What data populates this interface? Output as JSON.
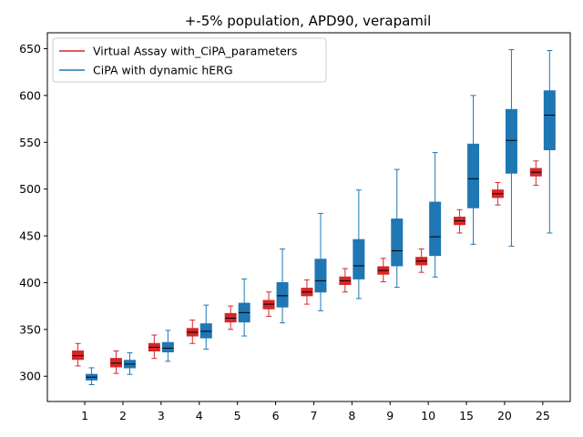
{
  "chart_data": {
    "type": "box",
    "title": "+-5% population, APD90, verapamil",
    "xlabel": "",
    "ylabel": "",
    "categories": [
      "1",
      "2",
      "3",
      "4",
      "5",
      "6",
      "7",
      "8",
      "9",
      "10",
      "15",
      "20",
      "25"
    ],
    "ylim": [
      273,
      667
    ],
    "yticks": [
      300,
      350,
      400,
      450,
      500,
      550,
      600,
      650
    ],
    "legend_position": "top-left",
    "grid": false,
    "series": [
      {
        "name": "Virtual Assay with_CiPA_parameters",
        "color": "#d62728",
        "boxes": [
          {
            "whislo": 311,
            "q1": 318,
            "med": 322,
            "q3": 327,
            "whishi": 335
          },
          {
            "whislo": 303,
            "q1": 310,
            "med": 314,
            "q3": 319,
            "whishi": 327
          },
          {
            "whislo": 319,
            "q1": 327,
            "med": 331,
            "q3": 335,
            "whishi": 344
          },
          {
            "whislo": 335,
            "q1": 343,
            "med": 347,
            "q3": 351,
            "whishi": 360
          },
          {
            "whislo": 350,
            "q1": 358,
            "med": 362,
            "q3": 367,
            "whishi": 375
          },
          {
            "whislo": 364,
            "q1": 372,
            "med": 377,
            "q3": 381,
            "whishi": 390
          },
          {
            "whislo": 377,
            "q1": 386,
            "med": 390,
            "q3": 394,
            "whishi": 403
          },
          {
            "whislo": 390,
            "q1": 398,
            "med": 402,
            "q3": 406,
            "whishi": 415
          },
          {
            "whislo": 401,
            "q1": 409,
            "med": 413,
            "q3": 417,
            "whishi": 426
          },
          {
            "whislo": 411,
            "q1": 419,
            "med": 423,
            "q3": 427,
            "whishi": 436
          },
          {
            "whislo": 453,
            "q1": 462,
            "med": 466,
            "q3": 470,
            "whishi": 478
          },
          {
            "whislo": 483,
            "q1": 491,
            "med": 495,
            "q3": 499,
            "whishi": 507
          },
          {
            "whislo": 504,
            "q1": 514,
            "med": 518,
            "q3": 522,
            "whishi": 530
          }
        ]
      },
      {
        "name": "CiPA with dynamic hERG",
        "color": "#1f77b4",
        "boxes": [
          {
            "whislo": 291,
            "q1": 296,
            "med": 299,
            "q3": 302,
            "whishi": 309
          },
          {
            "whislo": 302,
            "q1": 309,
            "med": 313,
            "q3": 317,
            "whishi": 325
          },
          {
            "whislo": 316,
            "q1": 326,
            "med": 330,
            "q3": 336,
            "whishi": 349
          },
          {
            "whislo": 329,
            "q1": 341,
            "med": 348,
            "q3": 356,
            "whishi": 376
          },
          {
            "whislo": 343,
            "q1": 358,
            "med": 368,
            "q3": 378,
            "whishi": 404
          },
          {
            "whislo": 357,
            "q1": 374,
            "med": 386,
            "q3": 400,
            "whishi": 436
          },
          {
            "whislo": 370,
            "q1": 390,
            "med": 402,
            "q3": 425,
            "whishi": 474
          },
          {
            "whislo": 383,
            "q1": 404,
            "med": 418,
            "q3": 446,
            "whishi": 499
          },
          {
            "whislo": 395,
            "q1": 418,
            "med": 434,
            "q3": 468,
            "whishi": 521
          },
          {
            "whislo": 406,
            "q1": 429,
            "med": 449,
            "q3": 486,
            "whishi": 539
          },
          {
            "whislo": 441,
            "q1": 480,
            "med": 511,
            "q3": 548,
            "whishi": 600
          },
          {
            "whislo": 439,
            "q1": 517,
            "med": 552,
            "q3": 585,
            "whishi": 649
          },
          {
            "whislo": 453,
            "q1": 542,
            "med": 579,
            "q3": 605,
            "whishi": 648
          }
        ]
      }
    ]
  }
}
